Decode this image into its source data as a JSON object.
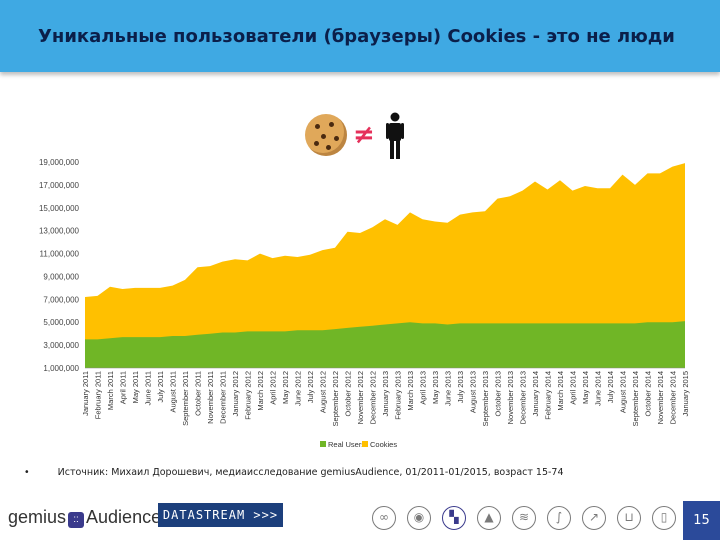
{
  "header": {
    "title": "Уникальные пользователи (браузеры) Cookies  - это не люди"
  },
  "icons": {
    "cookie": "cookie-icon",
    "not_equal": "≠",
    "person": "person-icon"
  },
  "colors": {
    "header": "#3fa9e3",
    "cookies": "#ffc000",
    "real_users": "#70b626",
    "page_badge": "#2b4a9a"
  },
  "chart_data": {
    "type": "area",
    "stacked": false,
    "categories": [
      "January 2011",
      "February 2011",
      "March 2011",
      "April 2011",
      "May 2011",
      "June 2011",
      "July 2011",
      "August 2011",
      "September 2011",
      "October 2011",
      "November 2011",
      "December 2011",
      "January 2012",
      "February 2012",
      "March 2012",
      "April 2012",
      "May 2012",
      "June 2012",
      "July 2012",
      "August 2012",
      "September 2012",
      "October 2012",
      "November 2012",
      "December 2012",
      "January 2013",
      "February 2013",
      "March 2013",
      "April 2013",
      "May 2013",
      "June 2013",
      "July 2013",
      "August 2013",
      "September 2013",
      "October 2013",
      "November 2013",
      "December 2013",
      "January 2014",
      "February 2014",
      "March 2014",
      "April 2014",
      "May 2014",
      "June 2014",
      "July 2014",
      "August 2014",
      "September 2014",
      "October 2014",
      "November 2014",
      "December 2014",
      "January 2015"
    ],
    "series": [
      {
        "name": "Cookies",
        "color": "#ffc000",
        "values": [
          7.2,
          7.3,
          8.1,
          7.9,
          8.0,
          8.0,
          8.0,
          8.2,
          8.7,
          9.8,
          9.9,
          10.3,
          10.5,
          10.4,
          11.0,
          10.6,
          10.8,
          10.7,
          10.9,
          11.3,
          11.5,
          12.9,
          12.8,
          13.3,
          14.0,
          13.5,
          14.6,
          14.0,
          13.8,
          13.7,
          14.4,
          14.6,
          14.7,
          15.8,
          16.0,
          16.5,
          17.3,
          16.6,
          17.4,
          16.5,
          16.9,
          16.7,
          16.7,
          17.9,
          17.0,
          18.0,
          18.0,
          18.6,
          18.9
        ]
      },
      {
        "name": "Real Users",
        "color": "#70b626",
        "values": [
          3.5,
          3.5,
          3.6,
          3.7,
          3.7,
          3.7,
          3.7,
          3.8,
          3.8,
          3.9,
          4.0,
          4.1,
          4.1,
          4.2,
          4.2,
          4.2,
          4.2,
          4.3,
          4.3,
          4.3,
          4.4,
          4.5,
          4.6,
          4.7,
          4.8,
          4.9,
          5.0,
          4.9,
          4.9,
          4.8,
          4.9,
          4.9,
          4.9,
          4.9,
          4.9,
          4.9,
          4.9,
          4.9,
          4.9,
          4.9,
          4.9,
          4.9,
          4.9,
          4.9,
          4.9,
          5.0,
          5.0,
          5.0,
          5.1
        ]
      }
    ],
    "yticks": [
      1000000,
      3000000,
      5000000,
      7000000,
      9000000,
      11000000,
      13000000,
      15000000,
      17000000,
      19000000
    ],
    "ytick_labels": [
      "1,000,000",
      "3,000,000",
      "5,000,000",
      "7,000,000",
      "9,000,000",
      "11,000,000",
      "13,000,000",
      "15,000,000",
      "17,000,000",
      "19,000,000"
    ],
    "ylim": [
      1000000,
      19000000
    ],
    "value_unit": "millions",
    "legend": [
      "Real Users",
      "Cookies"
    ],
    "legend_position": "bottom",
    "grid": false,
    "title": "",
    "xlabel": "",
    "ylabel": ""
  },
  "source": {
    "bullet": "•",
    "text": "Источник: Михаил Дорошевич, медиаисследование gemiusAudience, 01/2011-01/2015, возраст 15-74"
  },
  "footer": {
    "logo_left": "gemius",
    "logo_mark": "::",
    "logo_right": "Audience",
    "badge": "DATASTREAM >>>",
    "page_number": "15",
    "icons": [
      "handshake-icon",
      "location-pin-icon",
      "audience-icon",
      "mountain-icon",
      "wifi-icon",
      "feather-icon",
      "arrows-icon",
      "cart-icon",
      "mobile-icon"
    ]
  }
}
